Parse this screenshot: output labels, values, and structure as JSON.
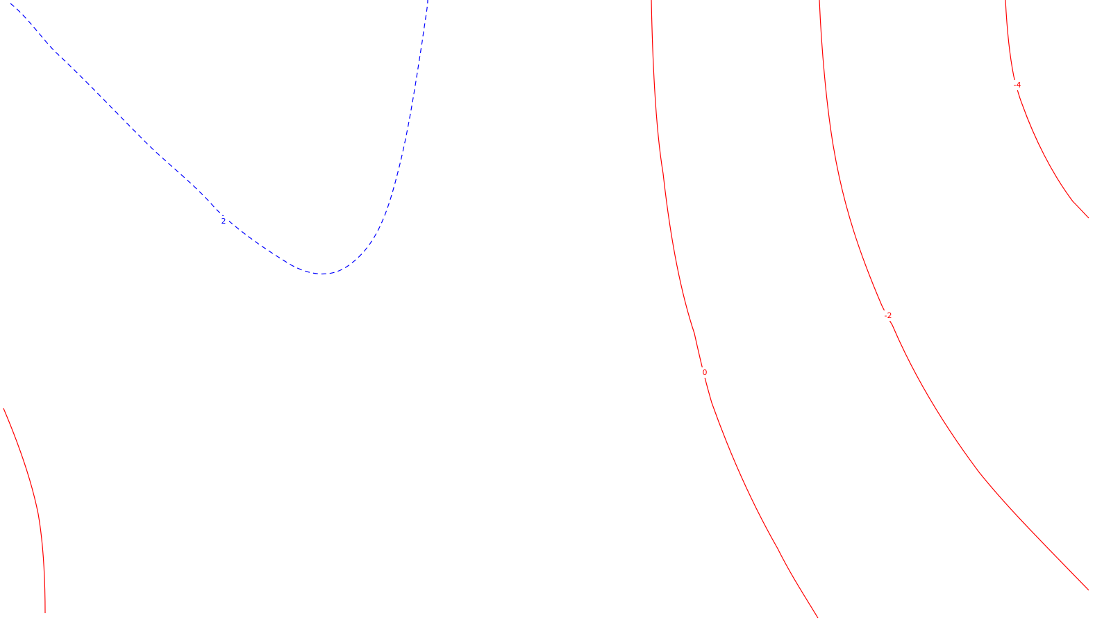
{
  "contours": [
    {
      "id": "c-2-pos",
      "label": "2",
      "color": "#0000ff",
      "style": "dashed"
    },
    {
      "id": "c-0",
      "label": "0",
      "color": "#ff0000",
      "style": "solid"
    },
    {
      "id": "c-neg2",
      "label": "-2",
      "color": "#ff0000",
      "style": "solid"
    },
    {
      "id": "c-neg4",
      "label": "-4",
      "color": "#ff0000",
      "style": "solid"
    },
    {
      "id": "c-left",
      "label": "",
      "color": "#ff0000",
      "style": "solid"
    }
  ]
}
